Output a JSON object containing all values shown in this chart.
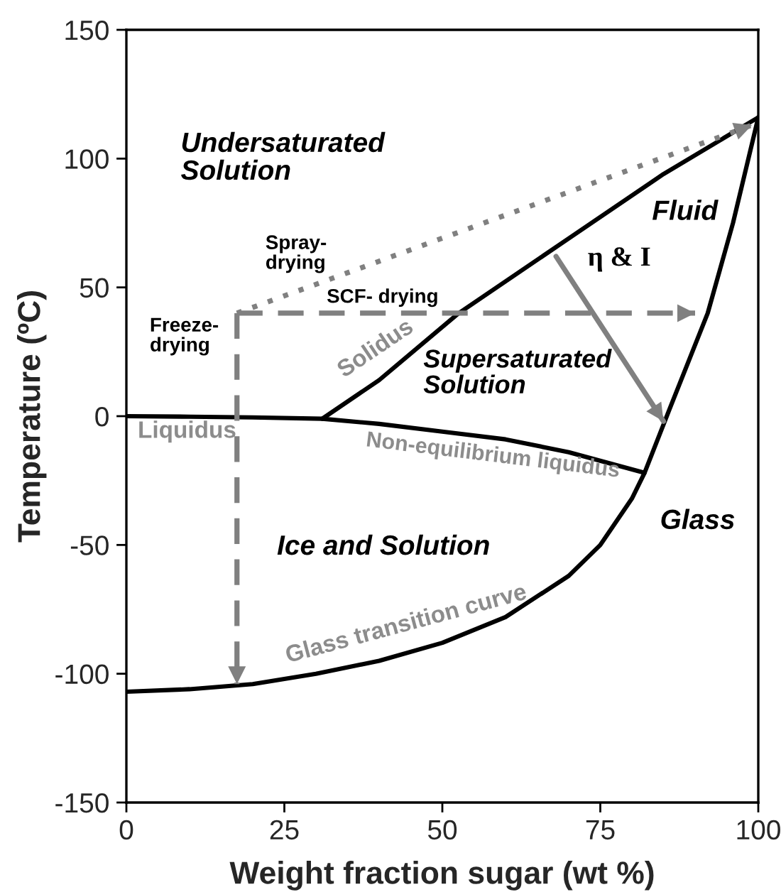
{
  "chart_data": {
    "type": "line",
    "xlabel": "Weight fraction sugar (wt %)",
    "ylabel": "Temperature (ºC)",
    "xlim": [
      0,
      100
    ],
    "ylim": [
      -150,
      150
    ],
    "xticks": [
      0,
      25,
      50,
      75,
      100
    ],
    "yticks": [
      -150,
      -100,
      -50,
      0,
      50,
      100,
      150
    ],
    "grid": false,
    "series": [
      {
        "color": "#000000",
        "line_style": "solid",
        "x": [
          0,
          10,
          20,
          31,
          40,
          50,
          60,
          70,
          82
        ],
        "values": [
          0,
          -0.2,
          -0.5,
          -1,
          -3,
          -6,
          -9,
          -14,
          -22
        ]
      },
      {
        "color": "#000000",
        "line_style": "solid",
        "x": [
          31,
          40,
          52.6,
          70,
          85,
          100
        ],
        "values": [
          -1,
          14,
          40,
          69,
          94,
          116
        ]
      },
      {
        "color": "#000000",
        "line_style": "solid",
        "x": [
          0,
          10,
          20,
          30,
          40,
          50,
          60,
          70,
          75,
          80,
          82,
          86,
          92,
          96,
          100
        ],
        "values": [
          -107,
          -106,
          -104,
          -100,
          -95,
          -88,
          -78,
          -62,
          -50,
          -32,
          -22,
          3,
          40,
          75,
          116
        ]
      },
      {
        "color": "#808080",
        "line_style": "dashed",
        "x": [
          17.5,
          17.5
        ],
        "values": [
          40,
          -104
        ]
      },
      {
        "color": "#808080",
        "line_style": "dashed",
        "x": [
          17.5,
          90
        ],
        "values": [
          40,
          40
        ]
      },
      {
        "color": "#808080",
        "line_style": "dotted",
        "x": [
          17.5,
          99
        ],
        "values": [
          40,
          113
        ]
      },
      {
        "color": "#808080",
        "line_style": "solid",
        "x": [
          68,
          85
        ],
        "values": [
          62,
          -2
        ]
      }
    ],
    "annotations": [
      "Undersaturated\nSolution",
      "Fluid",
      "Supersaturated\nSolution",
      "Ice and Solution",
      "Glass",
      "Spray-\ndrying",
      "SCF- drying",
      "Freeze-\ndrying",
      "Solidus",
      "Liquidus",
      "Non-equilibrium liquidus",
      "Glass transition curve",
      "η & I"
    ]
  }
}
